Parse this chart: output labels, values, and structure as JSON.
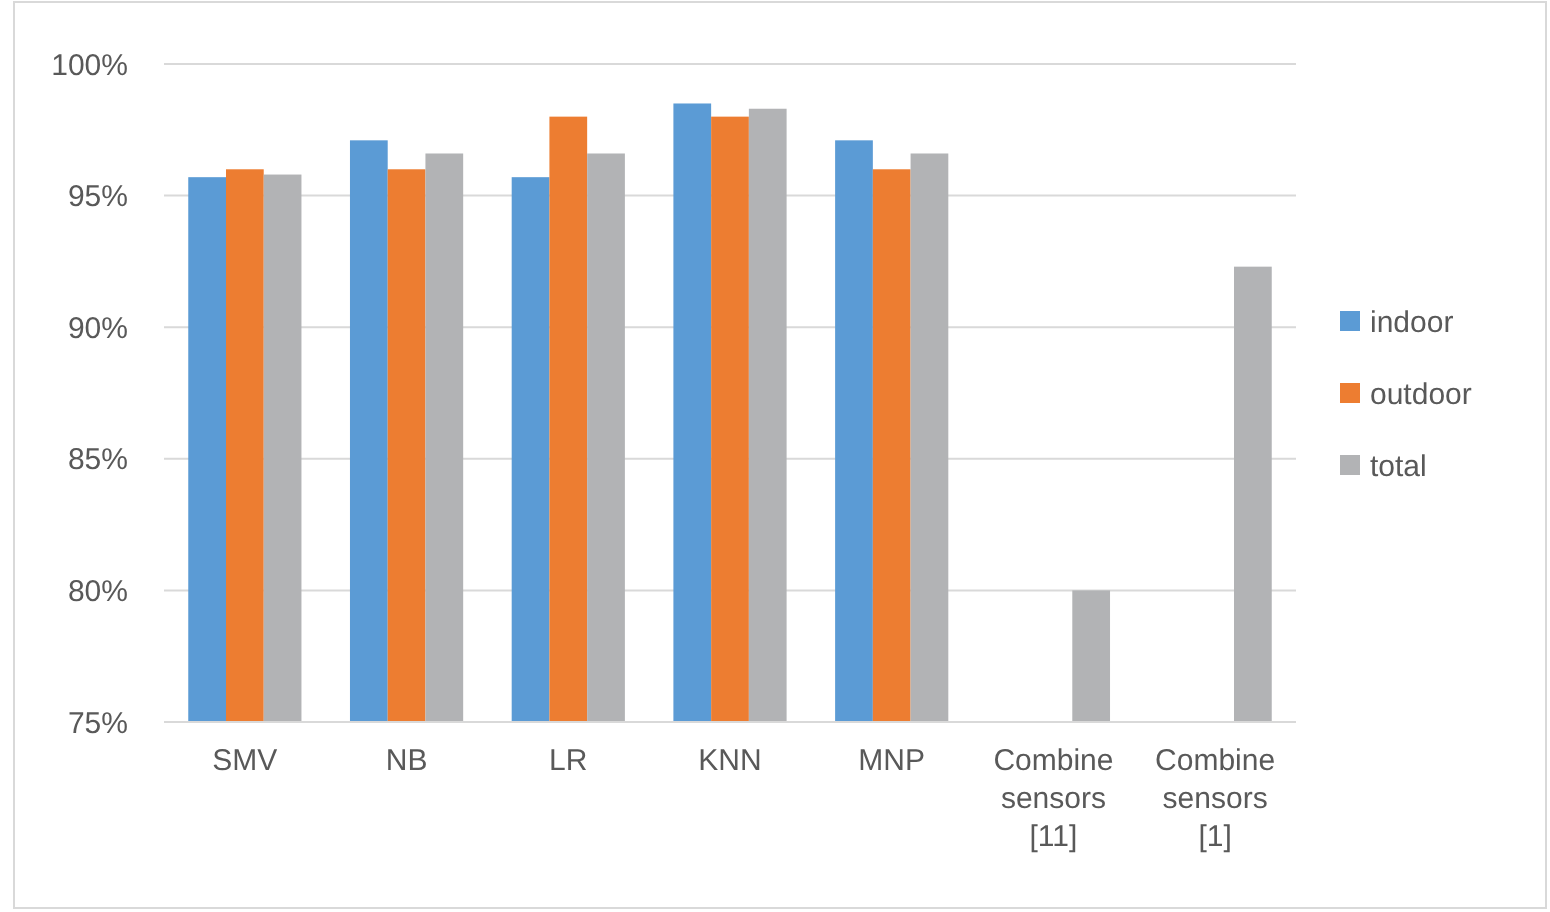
{
  "chart_data": {
    "type": "bar",
    "categories": [
      "SMV",
      "NB",
      "LR",
      "KNN",
      "MNP",
      "Combine sensors [11]",
      "Combine sensors [1]"
    ],
    "series": [
      {
        "name": "indoor",
        "color": "#5b9bd5",
        "values": [
          95.7,
          97.1,
          95.7,
          98.5,
          97.1,
          null,
          null
        ]
      },
      {
        "name": "outdoor",
        "color": "#ed7d31",
        "values": [
          96.0,
          96.0,
          98.0,
          98.0,
          96.0,
          null,
          null
        ]
      },
      {
        "name": "total",
        "color": "#b2b3b5",
        "values": [
          95.8,
          96.6,
          96.6,
          98.3,
          96.6,
          80,
          92.3
        ]
      }
    ],
    "ylim": [
      75,
      100
    ],
    "yticks": [
      {
        "value": 75,
        "label": "75%"
      },
      {
        "value": 80,
        "label": "80%"
      },
      {
        "value": 85,
        "label": "85%"
      },
      {
        "value": 90,
        "label": "90%"
      },
      {
        "value": 95,
        "label": "95%"
      },
      {
        "value": 100,
        "label": "100%"
      }
    ],
    "grid": "y",
    "legend": "right"
  }
}
